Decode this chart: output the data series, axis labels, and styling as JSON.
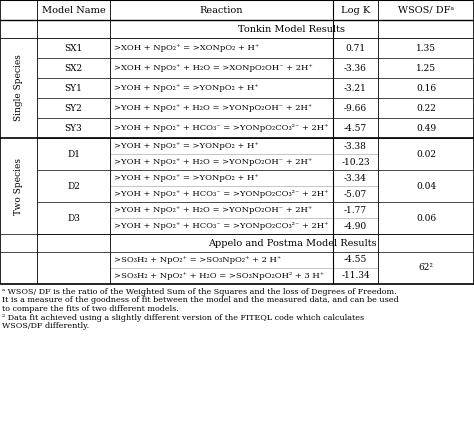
{
  "header": [
    "Model Name",
    "Reaction",
    "Log K",
    "WSOS/ DFᵃ"
  ],
  "section_tonkin": "Tonkin Model Results",
  "section_appelo": "Appelo and Postma Model Results",
  "single_species_label": "Single Species",
  "two_species_label": "Two Species",
  "rows_single": [
    {
      "model": "SX1",
      "reaction": ">XOH + NpO₂⁺ = >XONpO₂ + H⁺",
      "logk": "0.71",
      "wsos": "1.35"
    },
    {
      "model": "SX2",
      "reaction": ">XOH + NpO₂⁺ + H₂O = >XONpO₂OH⁻ + 2H⁺",
      "logk": "-3.36",
      "wsos": "1.25"
    },
    {
      "model": "SY1",
      "reaction": ">YOH + NpO₂⁺ = >YONpO₂ + H⁺",
      "logk": "-3.21",
      "wsos": "0.16"
    },
    {
      "model": "SY2",
      "reaction": ">YOH + NpO₂⁺ + H₂O = >YONpO₂OH⁻ + 2H⁺",
      "logk": "-9.66",
      "wsos": "0.22"
    },
    {
      "model": "SY3",
      "reaction": ">YOH + NpO₂⁺ + HCO₃⁻ = >YONpO₂CO₃²⁻ + 2H⁺",
      "logk": "-4.57",
      "wsos": "0.49"
    }
  ],
  "rows_two": [
    {
      "model": "D1",
      "reaction_1": ">YOH + NpO₂⁺ = >YONpO₂ + H⁺",
      "reaction_2": ">YOH + NpO₂⁺ + H₂O = >YONpO₂OH⁻ + 2H⁺",
      "logk_1": "-3.38",
      "logk_2": "-10.23",
      "wsos": "0.02"
    },
    {
      "model": "D2",
      "reaction_1": ">YOH + NpO₂⁺ = >YONpO₂ + H⁺",
      "reaction_2": ">YOH + NpO₂⁺ + HCO₃⁻ = >YONpO₂CO₃²⁻ + 2H⁺",
      "logk_1": "-3.34",
      "logk_2": "-5.07",
      "wsos": "0.04"
    },
    {
      "model": "D3",
      "reaction_1": ">YOH + NpO₂⁺ + H₂O = >YONpO₂OH⁻ + 2H⁺",
      "reaction_2": ">YOH + NpO₂⁺ + HCO₃⁻ = >YONpO₂CO₃²⁻ + 2H⁺",
      "logk_1": "-1.77",
      "logk_2": "-4.90",
      "wsos": "0.06"
    }
  ],
  "rows_appelo": [
    {
      "reaction_1": ">SO₃H₂ + NpO₂⁺ = >SO₃NpO₂⁺ + 2 H⁺",
      "reaction_2": ">SO₃H₂ + NpO₂⁺ + H₂O = >SO₃NpO₂OH² + 3 H⁺",
      "logk_1": "-4.55",
      "logk_2": "-11.34",
      "wsos": "62²"
    }
  ],
  "footnotes": [
    "ᵃ WSOS/ DF is the ratio of the Weighted Sum of the Squares and the loss of Degrees of Freedom.",
    "It is a measure of the goodness of fit between the model and the measured data, and can be used",
    "to compare the fits of two different models.",
    "² Data fit achieved using a slightly different version of the FITEQL code which calculates",
    "WSOS/DF differently."
  ]
}
